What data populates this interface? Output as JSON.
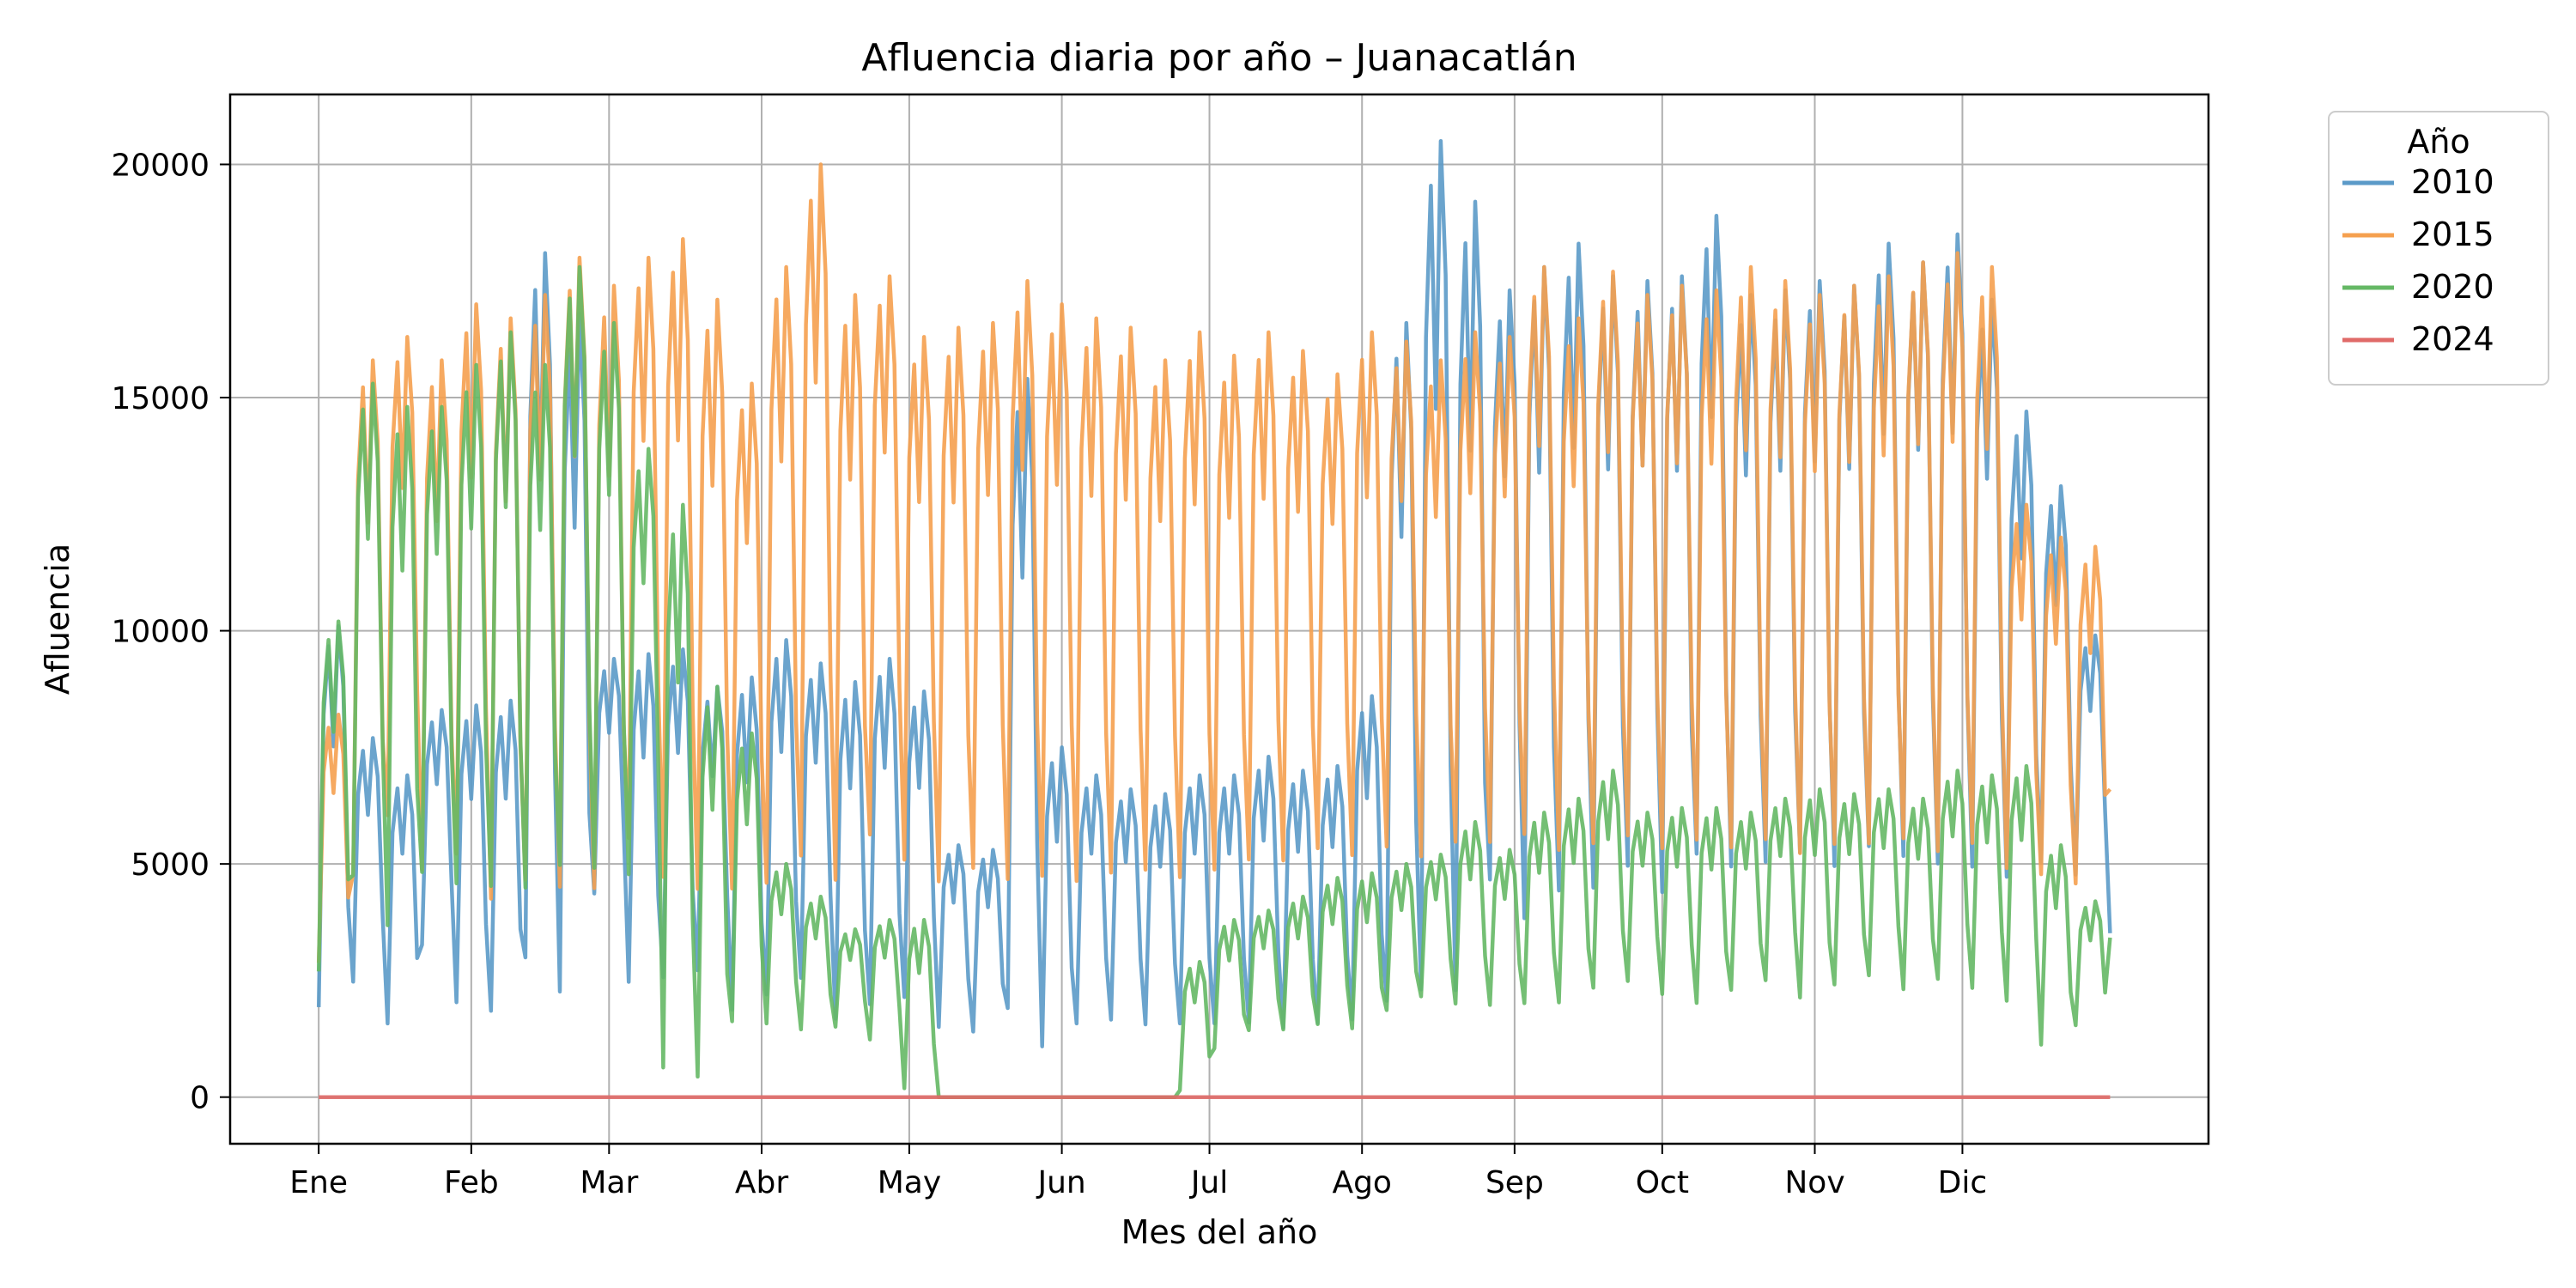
{
  "chart_data": {
    "type": "line",
    "title": "Afluencia diaria por año – Juanacatlán",
    "xlabel": "Mes del año",
    "ylabel": "Afluencia",
    "x_ticks": [
      {
        "day": 1,
        "label": "Ene"
      },
      {
        "day": 32,
        "label": "Feb"
      },
      {
        "day": 60,
        "label": "Mar"
      },
      {
        "day": 91,
        "label": "Abr"
      },
      {
        "day": 121,
        "label": "May"
      },
      {
        "day": 152,
        "label": "Jun"
      },
      {
        "day": 182,
        "label": "Jul"
      },
      {
        "day": 213,
        "label": "Ago"
      },
      {
        "day": 244,
        "label": "Sep"
      },
      {
        "day": 274,
        "label": "Oct"
      },
      {
        "day": 305,
        "label": "Nov"
      },
      {
        "day": 335,
        "label": "Dic"
      }
    ],
    "y_ticks": [
      0,
      5000,
      10000,
      15000,
      20000
    ],
    "xlim": [
      -17,
      385
    ],
    "ylim": [
      -1000,
      21500
    ],
    "grid": true,
    "legend_title": "Año",
    "legend_position": "outside-top-right",
    "series": [
      {
        "name": "2010",
        "color": "#5b9ac8",
        "days": [
          1,
          8,
          15,
          22,
          29,
          36,
          43,
          50,
          57,
          64,
          71,
          78,
          85,
          92,
          99,
          106,
          113,
          120,
          127,
          134,
          141,
          148,
          155,
          162,
          169,
          176,
          183,
          190,
          197,
          204,
          211,
          218,
          225,
          232,
          239,
          246,
          253,
          260,
          267,
          274,
          281,
          288,
          295,
          302,
          309,
          316,
          323,
          330,
          337,
          344,
          351,
          358,
          365
        ],
        "lows": [
          1500,
          2200,
          1300,
          3000,
          1700,
          1500,
          2200,
          1500,
          4100,
          2100,
          2200,
          2400,
          1500,
          1800,
          2200,
          1300,
          1600,
          1800,
          1300,
          1200,
          1200,
          750,
          1300,
          1400,
          1300,
          1300,
          1300,
          1300,
          1200,
          1300,
          1300,
          1300,
          1350,
          1400,
          4000,
          3100,
          3700,
          3800,
          4300,
          3700,
          4500,
          4300,
          4400,
          4600,
          4300,
          4700,
          4500,
          4300,
          4300,
          4200,
          4600,
          4500,
          3300
        ],
        "highs": [
          10100,
          7700,
          6900,
          8300,
          8400,
          8500,
          18100,
          16800,
          9400,
          9500,
          9600,
          8800,
          9000,
          9800,
          9300,
          8900,
          9400,
          8700,
          5400,
          5300,
          15400,
          7500,
          6900,
          6600,
          6500,
          6900,
          6900,
          7300,
          7000,
          7100,
          8600,
          16600,
          20500,
          19200,
          17300,
          17800,
          18300,
          17600,
          17500,
          17600,
          18900,
          17200,
          17300,
          17500,
          17400,
          18300,
          17900,
          18500,
          17100,
          14700,
          13100,
          9900,
          7600
        ]
      },
      {
        "name": "2015",
        "color": "#f5a04f",
        "days": [
          1,
          8,
          15,
          22,
          29,
          36,
          43,
          50,
          57,
          64,
          71,
          78,
          85,
          92,
          99,
          106,
          113,
          120,
          127,
          134,
          141,
          148,
          155,
          162,
          169,
          176,
          183,
          190,
          197,
          204,
          211,
          218,
          225,
          232,
          239,
          246,
          253,
          260,
          267,
          274,
          281,
          288,
          295,
          302,
          309,
          316,
          323,
          330,
          337,
          344,
          351,
          358,
          365
        ],
        "lows": [
          2600,
          4200,
          5500,
          4300,
          4600,
          3600,
          4000,
          3800,
          3800,
          4900,
          4000,
          3800,
          3900,
          3900,
          4400,
          4000,
          5000,
          4500,
          4000,
          4300,
          4000,
          4100,
          4000,
          4200,
          4300,
          4100,
          4300,
          4500,
          4500,
          4800,
          4600,
          4800,
          4600,
          4900,
          4900,
          5000,
          4700,
          4800,
          5000,
          4700,
          4900,
          4700,
          4900,
          4600,
          4800,
          4800,
          4900,
          4600,
          4800,
          4500,
          4400,
          4200,
          6600
        ],
        "highs": [
          8200,
          15800,
          16300,
          15800,
          17000,
          16700,
          17200,
          18000,
          17400,
          18000,
          18400,
          17100,
          15300,
          17800,
          20000,
          17200,
          17600,
          16300,
          16500,
          16600,
          17500,
          17000,
          16700,
          16500,
          15800,
          16400,
          15900,
          16400,
          16000,
          15500,
          16400,
          16200,
          15800,
          16400,
          16300,
          17800,
          16700,
          17700,
          17200,
          17400,
          17300,
          17800,
          17500,
          17200,
          17400,
          17600,
          17900,
          18100,
          17800,
          12700,
          12000,
          11800,
          6600
        ]
      },
      {
        "name": "2020",
        "color": "#65b865",
        "days": [
          1,
          8,
          15,
          22,
          29,
          36,
          43,
          50,
          57,
          64,
          71,
          78,
          85,
          92,
          99,
          106,
          113,
          120,
          127,
          134,
          141,
          148,
          155,
          162,
          169,
          176,
          183,
          190,
          197,
          204,
          211,
          218,
          225,
          232,
          239,
          246,
          253,
          260,
          267,
          274,
          281,
          288,
          295,
          302,
          309,
          316,
          323,
          330,
          337,
          344,
          351,
          358,
          365
        ],
        "lows": [
          2300,
          4200,
          3100,
          4300,
          4000,
          3900,
          3900,
          4300,
          4300,
          4300,
          0,
          0,
          1300,
          1400,
          1300,
          1400,
          1100,
          0,
          0,
          0,
          0,
          0,
          0,
          0,
          0,
          0,
          900,
          1300,
          1300,
          1400,
          1300,
          1700,
          2000,
          1800,
          1800,
          1800,
          1800,
          2100,
          2300,
          2000,
          1800,
          2100,
          2300,
          1900,
          2200,
          2400,
          2100,
          2300,
          2100,
          1800,
          900,
          1400,
          3400
        ],
        "highs": [
          10200,
          15300,
          14800,
          14800,
          15700,
          16400,
          15700,
          17800,
          16600,
          13900,
          12700,
          8800,
          7800,
          5000,
          4300,
          3600,
          3800,
          3800,
          0,
          0,
          0,
          0,
          0,
          0,
          0,
          2900,
          3800,
          4000,
          4300,
          4700,
          4800,
          5000,
          5200,
          5900,
          5300,
          6100,
          6400,
          7000,
          6100,
          6200,
          6200,
          6100,
          6400,
          6600,
          6500,
          6600,
          6400,
          7000,
          6900,
          7100,
          5400,
          4200,
          3800
        ]
      },
      {
        "name": "2024",
        "color": "#e06a68",
        "days": [
          1,
          365
        ],
        "lows": [
          0,
          0
        ],
        "highs": [
          0,
          0
        ]
      }
    ]
  }
}
